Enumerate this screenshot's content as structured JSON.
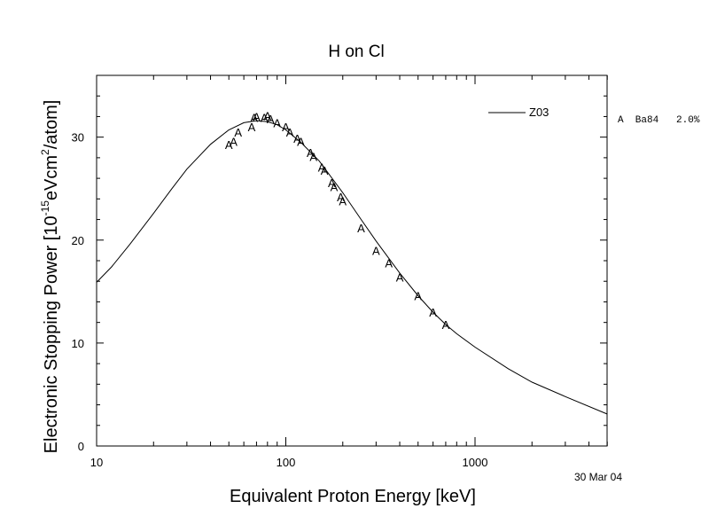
{
  "chart_data": {
    "type": "line",
    "title": "H on Cl",
    "xlabel": "Equivalent Proton Energy [keV]",
    "ylabel": {
      "prefix": "Electronic Stopping Power [10",
      "exp1": "-15",
      "mid": "eVcm",
      "exp2": "2",
      "suffix": "/atom]"
    },
    "x_scale": "log",
    "xlim": [
      10,
      5000
    ],
    "ylim": [
      0,
      36
    ],
    "x_ticks": [
      {
        "value": 10,
        "label": "10"
      },
      {
        "value": 100,
        "label": "100"
      },
      {
        "value": 1000,
        "label": "1000"
      }
    ],
    "y_ticks": [
      {
        "value": 0,
        "label": "0"
      },
      {
        "value": 10,
        "label": "10"
      },
      {
        "value": 20,
        "label": "20"
      },
      {
        "value": 30,
        "label": "30"
      }
    ],
    "grid": false,
    "legend": {
      "placement": "top-right",
      "line_label": "Z03",
      "data_label": "A  Ba84   2.0%"
    },
    "series": [
      {
        "name": "Z03",
        "style": "line",
        "x": [
          10,
          12,
          15,
          20,
          25,
          30,
          40,
          50,
          60,
          70,
          80,
          90,
          100,
          120,
          150,
          200,
          250,
          300,
          400,
          500,
          600,
          700,
          800,
          1000,
          1500,
          2000,
          3000,
          5000
        ],
        "y": [
          15.9,
          17.4,
          19.6,
          22.6,
          25.0,
          26.9,
          29.3,
          30.7,
          31.4,
          31.6,
          31.5,
          31.2,
          30.7,
          29.5,
          27.7,
          24.6,
          22.0,
          19.9,
          16.8,
          14.6,
          13.0,
          11.8,
          10.9,
          9.6,
          7.5,
          6.2,
          4.8,
          3.1
        ]
      },
      {
        "name": "Ba84",
        "style": "marker",
        "marker": "A",
        "x": [
          50,
          53,
          56,
          66,
          68,
          70,
          77,
          80,
          83,
          90,
          100,
          105,
          115,
          120,
          135,
          140,
          155,
          160,
          175,
          180,
          195,
          200,
          250,
          300,
          350,
          400,
          500,
          600,
          700
        ],
        "y": [
          29.3,
          29.6,
          30.5,
          31.0,
          31.9,
          32.0,
          31.9,
          32.1,
          31.8,
          31.4,
          31.0,
          30.5,
          29.9,
          29.6,
          28.5,
          28.1,
          27.1,
          26.8,
          25.6,
          25.2,
          24.2,
          23.8,
          21.2,
          19.0,
          17.8,
          16.4,
          14.6,
          13.0,
          11.8
        ]
      }
    ]
  },
  "date_stamp": "30 Mar 04"
}
